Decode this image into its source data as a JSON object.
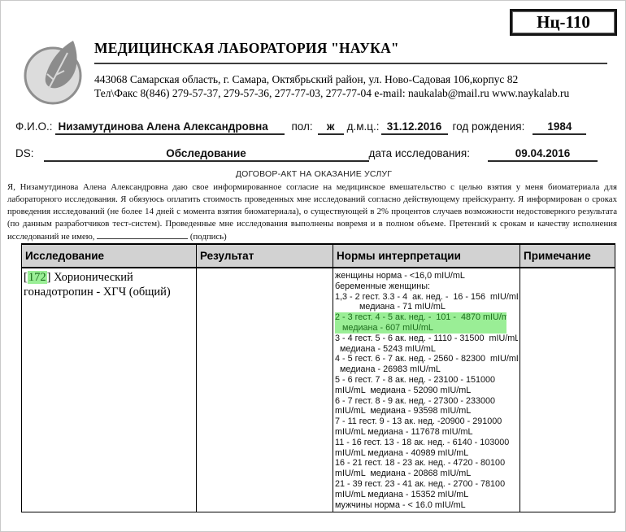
{
  "form_code": "Нц-110",
  "icons": {
    "logo": "leaf-icon"
  },
  "colors": {
    "highlight_bg": "#9aee96",
    "highlight_text": "#1d6e1d",
    "table_header_bg": "#d2d2d2"
  },
  "header": {
    "lab_name": "МЕДИЦИНСКАЯ ЛАБОРАТОРИЯ \"НАУКА\"",
    "address": "443068 Самарская область, г. Самара, Октябрьский район, ул. Ново-Садовая 106,корпус 82",
    "contacts": "Тел\\Факс 8(846) 279-57-37, 279-57-36, 277-77-03, 277-77-04 e-mail: naukalab@mail.ru www.naykalab.ru"
  },
  "patient": {
    "fio_label": "Ф.И.О.:",
    "fio_value": "Низамутдинова Алена Александровна",
    "sex_label": "пол:",
    "sex_value": "ж",
    "dmc_label": "д.м.ц.:",
    "dmc_value": "31.12.2016",
    "birth_label": "год рождения:",
    "birth_value": "1984",
    "ds_label": "DS:",
    "ds_value": "Обследование",
    "study_date_label": "дата исследования:",
    "study_date_value": "09.04.2016"
  },
  "agreement": {
    "title": "ДОГОВОР-АКТ НА ОКАЗАНИЕ УСЛУГ",
    "body": "Я,  Низамутдинова Алена Александровна   даю свое информированное согласие на медицинское вмешательство с целью взятия у меня биоматериала для лабораторного исследования. Я обязуюсь оплатить стоимость проведенных мне исследований согласно действующему прейскуранту. Я информирован о сроках проведения исследований (не более 14 дней с момента взятия биоматериала), о существующей в 2% процентов случаев возможности недостоверного результата (по данным разработчиков тест-систем). Проведенные мне исследования выполнены вовремя и в полном объеме. Претензий к срокам и качеству исполнения исследований не имею,",
    "signature_hint": "(подпись)"
  },
  "results_table": {
    "columns": [
      "Исследование",
      "Результат",
      "Нормы интерпретации",
      "Примечание"
    ],
    "rows": [
      {
        "test_code": "172",
        "test_code_open_bracket": "[",
        "test_code_close_bracket": "]",
        "test_name": " Хорионический гонадотропин - ХГЧ (общий)",
        "result": "",
        "note": "",
        "norms": [
          {
            "text": "женщины норма - <16,0 mIU/mL",
            "highlight": false
          },
          {
            "text": "беременные женщины:",
            "highlight": false
          },
          {
            "text": "1,3 - 2 гест. 3.3 - 4  ак. нед. -  16 - 156  mIU/mL",
            "highlight": false
          },
          {
            "text": "          медиана - 71 mIU/mL",
            "highlight": false
          },
          {
            "text": "2 - 3 гест. 4 - 5 ак. нед. -  101 -  4870 mIU/mL",
            "highlight": true
          },
          {
            "text": "   медиана - 607 mIU/mL",
            "highlight": true
          },
          {
            "text": "3 - 4 гест. 5 - 6 ак. нед. - 1110 - 31500  mIU/mL",
            "highlight": false
          },
          {
            "text": "  медиана - 5243 mIU/mL",
            "highlight": false
          },
          {
            "text": "4 - 5 гест. 6 - 7 ак. нед. - 2560 - 82300  mIU/mL",
            "highlight": false
          },
          {
            "text": "  медиана - 26983 mIU/mL",
            "highlight": false
          },
          {
            "text": "5 - 6 гест. 7 - 8 ак. нед. - 23100 - 151000",
            "highlight": false
          },
          {
            "text": "mIU/mL  медиана - 52090 mIU/mL",
            "highlight": false
          },
          {
            "text": "6 - 7 гест. 8 - 9 ак. нед. - 27300 - 233000",
            "highlight": false
          },
          {
            "text": "mIU/mL  медиана - 93598 mIU/mL",
            "highlight": false
          },
          {
            "text": "7 - 11 гест. 9 - 13 ак. нед. -20900 - 291000",
            "highlight": false
          },
          {
            "text": "mIU/mL медиана - 117678 mIU/mL",
            "highlight": false
          },
          {
            "text": "11 - 16 гест. 13 - 18 ак. нед. - 6140 - 103000",
            "highlight": false
          },
          {
            "text": "mIU/mL медиана - 40989 mIU/mL",
            "highlight": false
          },
          {
            "text": "16 - 21 гест. 18 - 23 ак. нед. - 4720 - 80100",
            "highlight": false
          },
          {
            "text": "mIU/mL  медиана - 20868 mIU/mL",
            "highlight": false
          },
          {
            "text": "21 - 39 гест. 23 - 41 ак. нед. - 2700 - 78100",
            "highlight": false
          },
          {
            "text": "mIU/mL медиана - 15352 mIU/mL",
            "highlight": false
          },
          {
            "text": "мужчины норма - < 16.0 mIU/mL",
            "highlight": false
          }
        ]
      }
    ]
  }
}
